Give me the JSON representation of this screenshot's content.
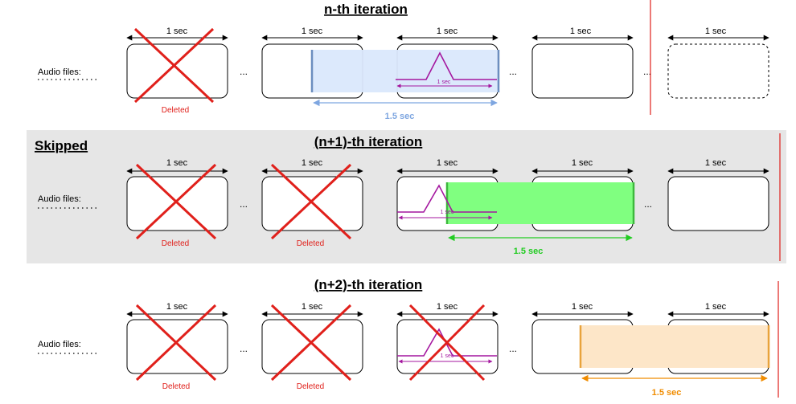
{
  "diagram": {
    "skipped_label": "Skipped",
    "audio_label": "Audio files:",
    "deleted_label": "Deleted",
    "one_sec_label": "1 sec",
    "ellipsis": "...",
    "colors": {
      "blue": "#dae8fc",
      "blue_stroke": "#6c8ebf",
      "green": "#80ff80",
      "green_stroke": "#22cc22",
      "orange": "#fde6c8",
      "orange_stroke": "#e8a33c",
      "cross": "#e0201b",
      "peak": "#a4179f",
      "panel": "#e6e6e6",
      "divider": "#e0201b"
    },
    "rows": [
      {
        "title": "n-th iteration",
        "window_label": "1.5 sec",
        "peak_label": "1 sec"
      },
      {
        "title": "(n+1)-th iteration",
        "window_label": "1.5 sec",
        "peak_label": "1 sec"
      },
      {
        "title": "(n+2)-th iteration",
        "window_label": "1.5 sec",
        "peak_label": "1 sec"
      }
    ]
  }
}
